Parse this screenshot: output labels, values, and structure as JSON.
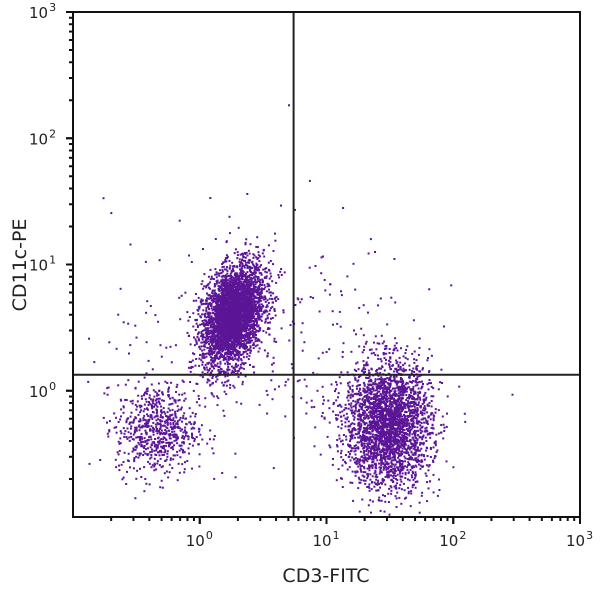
{
  "chart_data": {
    "type": "scatter",
    "title": "",
    "xlabel": "CD3-FITC",
    "ylabel": "CD11c-PE",
    "xscale": "log",
    "yscale": "log",
    "xlim": [
      0.1,
      1000
    ],
    "ylim": [
      0.1,
      1000
    ],
    "x_ticks": [
      {
        "value": 1,
        "label": "10",
        "exp": "0"
      },
      {
        "value": 10,
        "label": "10",
        "exp": "1"
      },
      {
        "value": 100,
        "label": "10",
        "exp": "2"
      },
      {
        "value": 1000,
        "label": "10",
        "exp": "3"
      }
    ],
    "y_ticks": [
      {
        "value": 1,
        "label": "10",
        "exp": "0"
      },
      {
        "value": 10,
        "label": "10",
        "exp": "1"
      },
      {
        "value": 100,
        "label": "10",
        "exp": "2"
      },
      {
        "value": 1000,
        "label": "10",
        "exp": "3"
      }
    ],
    "grid": false,
    "quadrant_gates": {
      "x": 5.5,
      "y": 1.34
    },
    "point_color": "#5b1596",
    "populations": [
      {
        "label": "CD11c+ CD3-",
        "center": [
          1.8,
          4.0
        ],
        "log_sd": [
          0.12,
          0.2
        ],
        "count": 3800,
        "corr": 0.35
      },
      {
        "label": "CD3+ CD11c-",
        "center": [
          30,
          0.55
        ],
        "log_sd": [
          0.17,
          0.25
        ],
        "count": 2900,
        "corr": 0.0
      },
      {
        "label": "CD3- CD11c-",
        "center": [
          0.45,
          0.5
        ],
        "log_sd": [
          0.16,
          0.18
        ],
        "count": 700,
        "corr": 0.0
      },
      {
        "label": "scattered",
        "center": [
          3,
          3
        ],
        "log_sd": [
          0.6,
          0.5
        ],
        "count": 250,
        "corr": 0.0
      }
    ]
  }
}
